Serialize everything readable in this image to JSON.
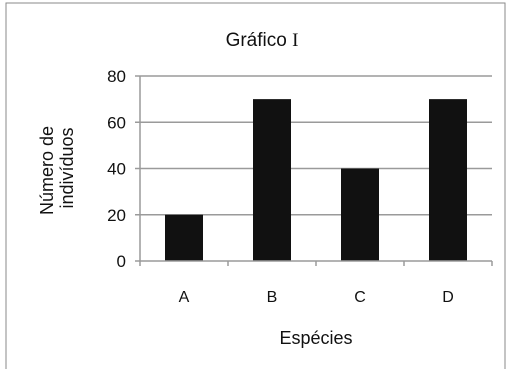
{
  "chart_data": {
    "type": "bar",
    "title_parts": [
      "Gráfico ",
      "I"
    ],
    "categories": [
      "A",
      "B",
      "C",
      "D"
    ],
    "values": [
      20,
      70,
      40,
      70
    ],
    "xlabel": "Espécies",
    "ylabel_lines": [
      "Número de",
      "indivíduos"
    ],
    "ylim": [
      0,
      80
    ],
    "yticks": [
      "0",
      "20",
      "40",
      "60",
      "80"
    ],
    "grid": true,
    "legend": "none",
    "colors": {
      "bar": "#111111",
      "grid": "#9a9a9a",
      "axis": "#9a9a9a",
      "frame": "#8a8a8a"
    }
  }
}
